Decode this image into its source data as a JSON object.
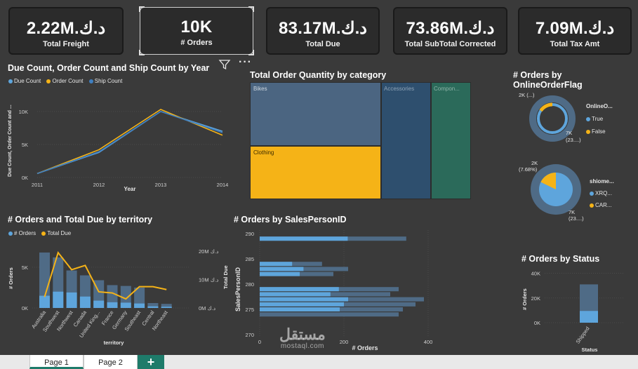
{
  "kpis": [
    {
      "value": "2.22M.د.ك",
      "label": "Total Freight"
    },
    {
      "value": "10K",
      "label": "# Orders"
    },
    {
      "value": "83.17M.د.ك",
      "label": "Total Due"
    },
    {
      "value": "73.86M.د.ك",
      "label": "Total SubTotal Corrected"
    },
    {
      "value": "7.09M.د.ك",
      "label": "Total Tax Amt"
    }
  ],
  "visual_header": {
    "filter_icon": "filter-icon",
    "more_icon": "more-options-icon",
    "more_glyph": "···"
  },
  "line_chart": {
    "title": "Due Count, Order Count and Ship Count by Year",
    "legend": [
      "Due Count",
      "Order Count",
      "Ship Count"
    ]
  },
  "treemap": {
    "title": "Total Order Quantity by category",
    "tiles": [
      "Bikes",
      "Clothing",
      "Accessories",
      "Compon..."
    ]
  },
  "donut_online": {
    "title_line1": "# Orders by",
    "title_line2": "OnlineOrderFlag",
    "legend_title": "OnlineO...",
    "legend": [
      "True",
      "False"
    ],
    "label_small": "2K (...)",
    "label_large_1": "7K",
    "label_large_2": "(23....)"
  },
  "pie_ship": {
    "legend_title": "shiome...",
    "legend": [
      "XRQ...",
      "CAR..."
    ],
    "label_small_1": "2K",
    "label_small_2": "(7.68%)",
    "label_large_1": "7K",
    "label_large_2": "(23....)"
  },
  "territory_chart": {
    "title": "# Orders and Total Due by territory",
    "legend": [
      "# Orders",
      "Total Due"
    ],
    "xlabel": "territory",
    "ylabel_left": "# Orders",
    "ylabel_right": "Total Due"
  },
  "salesperson_chart": {
    "title": "# Orders by SalesPersonID",
    "xlabel": "# Orders",
    "ylabel": "SalesPersonID"
  },
  "status_chart": {
    "title": "# Orders by Status",
    "xlabel": "Status",
    "ylabel": "# Orders"
  },
  "tabs": [
    "Page 1",
    "Page 2"
  ],
  "add_tab": "+",
  "watermark": {
    "arabic": "مستقل",
    "latin": "mostaql.com"
  },
  "colors": {
    "background": "#3a3a3a",
    "panel": "#2b2b2b",
    "blue": "#5ea5dc",
    "dark_blue": "#4f6b86",
    "yellow": "#f5b317",
    "teal": "#2b6a5a",
    "navy": "#2e4f6e",
    "tab_accent": "#1e7b6a"
  },
  "chart_data": [
    {
      "type": "line",
      "title": "Due Count, Order Count and Ship Count by Year",
      "x": [
        "2011",
        "2012",
        "2013",
        "2014"
      ],
      "xlabel": "Year",
      "ylabel": "Due Count, Order Count and Ship Count",
      "y_ticks": [
        "0K",
        "5K",
        "10K"
      ],
      "ylim": [
        0,
        12000
      ],
      "legend_position": "top-left",
      "series": [
        {
          "name": "Due Count",
          "values": [
            600,
            3800,
            10000,
            7000
          ]
        },
        {
          "name": "Order Count",
          "values": [
            600,
            4200,
            10300,
            6400
          ]
        },
        {
          "name": "Ship Count",
          "values": [
            600,
            3900,
            10000,
            6800
          ]
        }
      ]
    },
    {
      "type": "bar",
      "title": "# Orders and Total Due by territory",
      "categories": [
        "Australia",
        "Southwest",
        "Northwest",
        "Canada",
        "United King...",
        "France",
        "Germany",
        "Southeast",
        "Central",
        "Northeast"
      ],
      "y_ticks_left": [
        "0K",
        "5K"
      ],
      "y_ticks_right": [
        "0M د.ك",
        "10M د.ك",
        "20M د.ك"
      ],
      "ylim": [
        0,
        8000
      ],
      "y2lim": [
        0,
        23000000
      ],
      "series": [
        {
          "name": "# Orders",
          "values": [
            6800,
            6200,
            4600,
            4000,
            3400,
            2800,
            2700,
            2500,
            600,
            500
          ]
        },
        {
          "name": "# Orders (highlighted)",
          "values": [
            1500,
            2000,
            1900,
            1400,
            900,
            700,
            650,
            550,
            200,
            150
          ]
        },
        {
          "name": "Total Due",
          "values": [
            3900000,
            19500000,
            13500000,
            15000000,
            5700000,
            5300000,
            3200000,
            7500000,
            7500000,
            6500000
          ]
        }
      ]
    },
    {
      "type": "bar",
      "orientation": "horizontal",
      "title": "# Orders by SalesPersonID",
      "categories": [
        "289",
        "284",
        "283",
        "282",
        "279",
        "278",
        "277",
        "276",
        "275",
        "274"
      ],
      "y_ticks": [
        "270",
        "275",
        "280",
        "285",
        "290"
      ],
      "x_ticks": [
        "0",
        "200",
        "400"
      ],
      "xlim": [
        0,
        470
      ],
      "series": [
        {
          "name": "# Orders",
          "values": [
            348,
            148,
            210,
            175,
            330,
            310,
            390,
            370,
            340,
            330
          ]
        },
        {
          "name": "# Orders (highlighted)",
          "values": [
            209,
            77,
            104,
            95,
            188,
            168,
            210,
            200,
            190,
            0
          ]
        }
      ]
    },
    {
      "type": "bar",
      "title": "# Orders by Status",
      "categories": [
        "Shipped"
      ],
      "y_ticks": [
        "0K",
        "20K",
        "40K"
      ],
      "ylim": [
        0,
        42000
      ],
      "series": [
        {
          "name": "# Orders",
          "values": [
            31000
          ]
        },
        {
          "name": "# Orders (highlighted)",
          "values": [
            9500
          ]
        }
      ]
    },
    {
      "type": "pie",
      "title": "# Orders by OnlineOrderFlag",
      "labels": [
        "True",
        "False"
      ],
      "values": [
        7000,
        2000
      ],
      "donut": true
    },
    {
      "type": "pie",
      "labels": [
        "XRQ...",
        "CAR..."
      ],
      "values": [
        7000,
        2000
      ]
    },
    {
      "type": "heatmap",
      "subtype": "treemap",
      "title": "Total Order Quantity by category",
      "labels": [
        "Bikes",
        "Clothing",
        "Accessories",
        "Compon..."
      ],
      "values": [
        41,
        18,
        15,
        14
      ]
    }
  ]
}
